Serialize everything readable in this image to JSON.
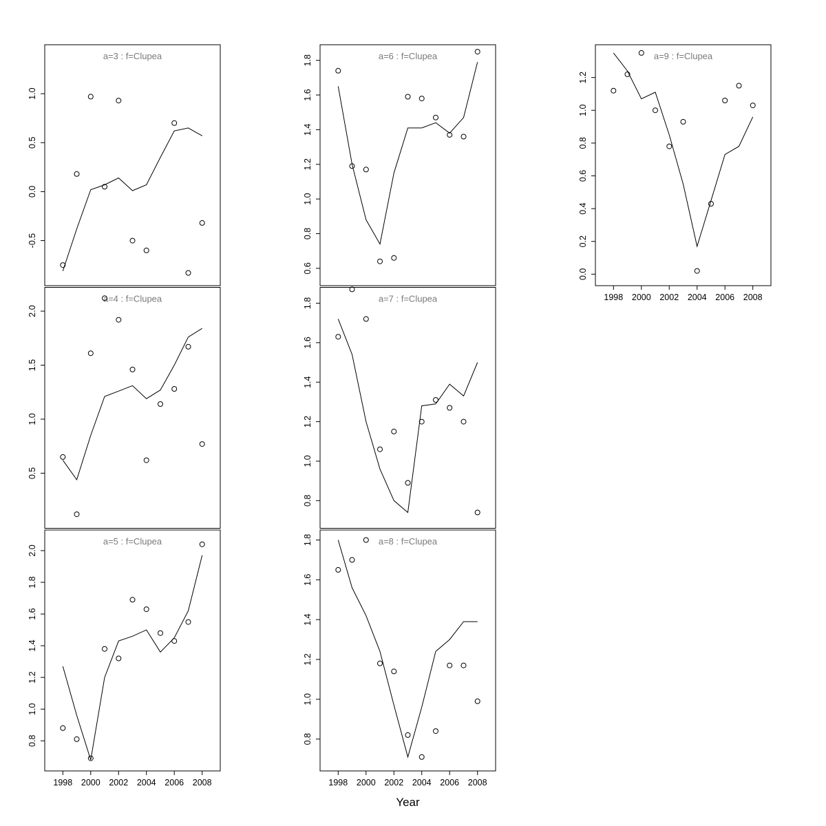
{
  "figure": {
    "background": "#ffffff",
    "axis_color": "#000000",
    "title_color": "#7a7a7a"
  },
  "chart_data": {
    "type": "scatter",
    "description": "Lattice of 7 small-multiple panels: observed points (open circles) with fitted line per age group, species Clupea",
    "xlabel": "Year",
    "x_ticks": [
      1998,
      2000,
      2002,
      2004,
      2006,
      2008
    ],
    "xlim": [
      1996.7,
      2009.3
    ],
    "point_style": "open-circle",
    "line_style": "solid",
    "grid": "off",
    "panels": [
      {
        "name": "a3",
        "title": "a=3 : f=Clupea",
        "grid": {
          "col": 0,
          "row": 0
        },
        "ylim": [
          -0.96,
          1.5
        ],
        "yticks": [
          -0.5,
          0.0,
          0.5,
          1.0
        ],
        "show_x_axis": false,
        "points": {
          "years": [
            1998,
            1999,
            2000,
            2001,
            2002,
            2003,
            2004,
            2006,
            2007,
            2008
          ],
          "values": [
            -0.75,
            0.18,
            0.97,
            0.05,
            0.93,
            -0.5,
            -0.6,
            0.7,
            -0.83,
            -0.32
          ]
        },
        "line": {
          "years": [
            1998,
            1999,
            2000,
            2001,
            2002,
            2003,
            2004,
            2005,
            2006,
            2007,
            2008
          ],
          "values": [
            -0.81,
            -0.38,
            0.02,
            0.07,
            0.14,
            0.01,
            0.07,
            0.35,
            0.62,
            0.65,
            0.57
          ]
        }
      },
      {
        "name": "a4",
        "title": "a=4 : f=Clupea",
        "grid": {
          "col": 0,
          "row": 1
        },
        "ylim": [
          -0.01,
          2.22
        ],
        "yticks": [
          0.5,
          1.0,
          1.5,
          2.0
        ],
        "show_x_axis": false,
        "points": {
          "years": [
            1998,
            1999,
            2000,
            2001,
            2002,
            2003,
            2004,
            2005,
            2006,
            2007,
            2008
          ],
          "values": [
            0.65,
            0.12,
            1.61,
            2.12,
            1.92,
            1.46,
            0.62,
            1.14,
            1.28,
            1.67,
            0.77
          ]
        },
        "line": {
          "years": [
            1998,
            1999,
            2000,
            2001,
            2002,
            2003,
            2004,
            2005,
            2006,
            2007,
            2008
          ],
          "values": [
            0.62,
            0.44,
            0.85,
            1.21,
            1.26,
            1.31,
            1.19,
            1.27,
            1.5,
            1.76,
            1.84
          ]
        }
      },
      {
        "name": "a5",
        "title": "a=5 : f=Clupea",
        "grid": {
          "col": 0,
          "row": 2
        },
        "ylim": [
          0.61,
          2.13
        ],
        "yticks": [
          0.8,
          1.0,
          1.2,
          1.4,
          1.6,
          1.8,
          2.0
        ],
        "show_x_axis": true,
        "points": {
          "years": [
            1998,
            1999,
            2000,
            2001,
            2002,
            2003,
            2004,
            2005,
            2006,
            2007,
            2008
          ],
          "values": [
            0.88,
            0.81,
            0.69,
            1.38,
            1.32,
            1.69,
            1.63,
            1.48,
            1.43,
            1.55,
            2.04
          ]
        },
        "line": {
          "years": [
            1998,
            1999,
            2000,
            2001,
            2002,
            2003,
            2004,
            2005,
            2006,
            2007,
            2008
          ],
          "values": [
            1.27,
            0.96,
            0.68,
            1.2,
            1.43,
            1.46,
            1.5,
            1.36,
            1.45,
            1.62,
            1.97
          ]
        }
      },
      {
        "name": "a6",
        "title": "a=6 : f=Clupea",
        "grid": {
          "col": 1,
          "row": 0
        },
        "ylim": [
          0.5,
          1.89
        ],
        "yticks": [
          0.6,
          0.8,
          1.0,
          1.2,
          1.4,
          1.6,
          1.8
        ],
        "show_x_axis": false,
        "points": {
          "years": [
            1998,
            1999,
            2000,
            2001,
            2002,
            2003,
            2004,
            2005,
            2006,
            2007,
            2008
          ],
          "values": [
            1.74,
            1.19,
            1.17,
            0.64,
            0.66,
            1.59,
            1.58,
            1.47,
            1.37,
            1.36,
            1.85
          ]
        },
        "line": {
          "years": [
            1998,
            1999,
            2000,
            2001,
            2002,
            2003,
            2004,
            2005,
            2006,
            2007,
            2008
          ],
          "values": [
            1.65,
            1.2,
            0.88,
            0.74,
            1.15,
            1.41,
            1.41,
            1.44,
            1.38,
            1.47,
            1.79
          ]
        }
      },
      {
        "name": "a7",
        "title": "a=7 : f=Clupea",
        "grid": {
          "col": 1,
          "row": 1
        },
        "ylim": [
          0.66,
          1.88
        ],
        "yticks": [
          0.8,
          1.0,
          1.2,
          1.4,
          1.6,
          1.8
        ],
        "show_x_axis": false,
        "points": {
          "years": [
            1998,
            1999,
            2000,
            2001,
            2002,
            2003,
            2004,
            2005,
            2006,
            2007,
            2008
          ],
          "values": [
            1.63,
            1.87,
            1.72,
            1.06,
            1.15,
            0.89,
            1.2,
            1.31,
            1.27,
            1.2,
            0.74
          ]
        },
        "line": {
          "years": [
            1998,
            1999,
            2000,
            2001,
            2002,
            2003,
            2004,
            2005,
            2006,
            2007,
            2008
          ],
          "values": [
            1.72,
            1.54,
            1.2,
            0.96,
            0.8,
            0.74,
            1.28,
            1.29,
            1.39,
            1.33,
            1.5
          ]
        }
      },
      {
        "name": "a8",
        "title": "a=8 : f=Clupea",
        "grid": {
          "col": 1,
          "row": 2
        },
        "ylim": [
          0.64,
          1.85
        ],
        "yticks": [
          0.8,
          1.0,
          1.2,
          1.4,
          1.6,
          1.8
        ],
        "show_x_axis": true,
        "points": {
          "years": [
            1998,
            1999,
            2000,
            2001,
            2002,
            2003,
            2004,
            2005,
            2006,
            2007,
            2008
          ],
          "values": [
            1.65,
            1.7,
            1.8,
            1.18,
            1.14,
            0.82,
            0.71,
            0.84,
            1.17,
            1.17,
            0.99
          ]
        },
        "line": {
          "years": [
            1998,
            1999,
            2000,
            2001,
            2002,
            2003,
            2004,
            2005,
            2006,
            2007,
            2008
          ],
          "values": [
            1.8,
            1.56,
            1.42,
            1.24,
            0.97,
            0.71,
            0.96,
            1.24,
            1.3,
            1.39,
            1.39
          ]
        }
      },
      {
        "name": "a9",
        "title": "a=9 : f=Clupea",
        "grid": {
          "col": 2,
          "row": 0
        },
        "ylim": [
          -0.07,
          1.4
        ],
        "yticks": [
          0.0,
          0.2,
          0.4,
          0.6,
          0.8,
          1.0,
          1.2
        ],
        "show_x_axis": true,
        "points": {
          "years": [
            1998,
            1999,
            2000,
            2001,
            2002,
            2003,
            2004,
            2005,
            2006,
            2007,
            2008
          ],
          "values": [
            1.12,
            1.22,
            1.35,
            1.0,
            0.78,
            0.93,
            0.02,
            0.43,
            1.06,
            1.15,
            1.03
          ]
        },
        "line": {
          "years": [
            1998,
            1999,
            2000,
            2001,
            2002,
            2003,
            2004,
            2005,
            2006,
            2007,
            2008
          ],
          "values": [
            1.35,
            1.24,
            1.07,
            1.11,
            0.85,
            0.55,
            0.17,
            0.45,
            0.73,
            0.78,
            0.96
          ]
        }
      }
    ]
  }
}
